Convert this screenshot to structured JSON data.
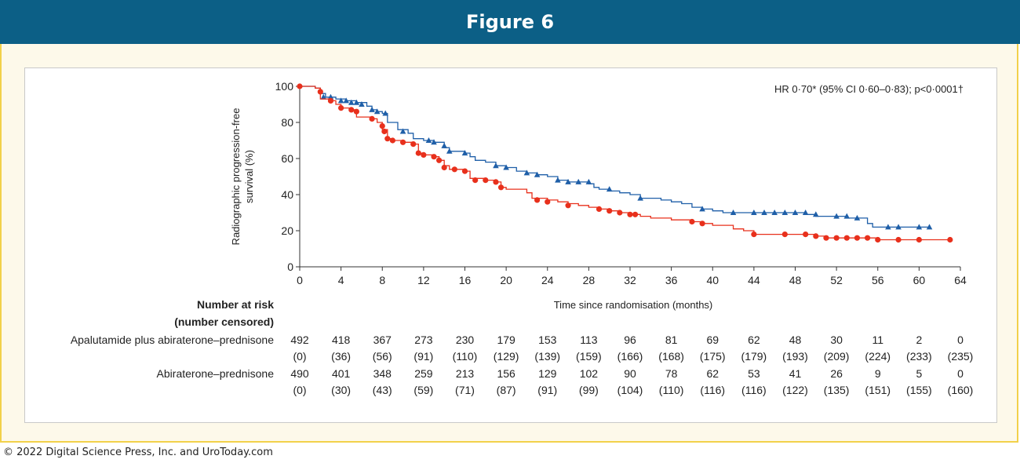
{
  "figure_title": "Figure 6",
  "copyright": "© 2022 Digital Science Press, Inc. and UroToday.com",
  "colors": {
    "banner": "#0c5f86",
    "frame": "#f2d14b",
    "series_blue": "#1f5fa8",
    "series_red": "#e8301c"
  },
  "chart_data": {
    "type": "line",
    "subtype": "kaplan-meier",
    "annotation": "HR 0·70* (95% CI 0·60–0·83); p<0·0001†",
    "xlabel": "Time since randomisation (months)",
    "ylabel_lines": [
      "Radiographic progression-free",
      "survival (%)"
    ],
    "xlim": [
      0,
      64
    ],
    "ylim": [
      0,
      100
    ],
    "x_ticks": [
      0,
      4,
      8,
      12,
      16,
      20,
      24,
      28,
      32,
      36,
      40,
      44,
      48,
      52,
      56,
      60,
      64
    ],
    "y_ticks": [
      0,
      20,
      40,
      60,
      80,
      100
    ],
    "grid": false,
    "series": [
      {
        "color": "#1f5fa8",
        "marker": "triangle",
        "points": [
          [
            0,
            100
          ],
          [
            1.5,
            99
          ],
          [
            2,
            96
          ],
          [
            2.5,
            94
          ],
          [
            3.5,
            93
          ],
          [
            4.5,
            92
          ],
          [
            5.5,
            91
          ],
          [
            6.5,
            89
          ],
          [
            7,
            87
          ],
          [
            7.5,
            86
          ],
          [
            8,
            85
          ],
          [
            8.5,
            80
          ],
          [
            9.5,
            76
          ],
          [
            10.5,
            74
          ],
          [
            11,
            71
          ],
          [
            12,
            70
          ],
          [
            13,
            69
          ],
          [
            14,
            66
          ],
          [
            14.5,
            64
          ],
          [
            16,
            63
          ],
          [
            16.5,
            61
          ],
          [
            17,
            59
          ],
          [
            18,
            58
          ],
          [
            19,
            56
          ],
          [
            20,
            55
          ],
          [
            21,
            53
          ],
          [
            22,
            52
          ],
          [
            23,
            51
          ],
          [
            24,
            50
          ],
          [
            25,
            48
          ],
          [
            26,
            47
          ],
          [
            28,
            46
          ],
          [
            28.5,
            44
          ],
          [
            29,
            43
          ],
          [
            30,
            42
          ],
          [
            31,
            41
          ],
          [
            32,
            40
          ],
          [
            33,
            38
          ],
          [
            35,
            37
          ],
          [
            36,
            36
          ],
          [
            37,
            35
          ],
          [
            38,
            33
          ],
          [
            39,
            32
          ],
          [
            40,
            31
          ],
          [
            41,
            30
          ],
          [
            48,
            30
          ],
          [
            49,
            29
          ],
          [
            50,
            28
          ],
          [
            52,
            28
          ],
          [
            53,
            27
          ],
          [
            54,
            27
          ],
          [
            55,
            24
          ],
          [
            55.5,
            22
          ],
          [
            61,
            22
          ]
        ],
        "censored": [
          [
            2.3,
            94
          ],
          [
            3,
            94
          ],
          [
            4,
            92
          ],
          [
            4.5,
            92
          ],
          [
            5,
            91
          ],
          [
            5.5,
            91
          ],
          [
            6,
            90
          ],
          [
            7,
            87
          ],
          [
            7.5,
            86
          ],
          [
            8.3,
            85
          ],
          [
            10,
            75
          ],
          [
            12.5,
            70
          ],
          [
            13,
            69
          ],
          [
            14,
            67
          ],
          [
            14.5,
            64
          ],
          [
            16,
            63
          ],
          [
            19,
            56
          ],
          [
            20,
            55
          ],
          [
            22,
            52
          ],
          [
            23,
            51
          ],
          [
            25,
            48
          ],
          [
            26,
            47
          ],
          [
            27,
            47
          ],
          [
            28,
            47
          ],
          [
            30,
            43
          ],
          [
            33,
            38
          ],
          [
            39,
            32
          ],
          [
            42,
            30
          ],
          [
            44,
            30
          ],
          [
            45,
            30
          ],
          [
            46,
            30
          ],
          [
            47,
            30
          ],
          [
            48,
            30
          ],
          [
            49,
            30
          ],
          [
            50,
            29
          ],
          [
            52,
            28
          ],
          [
            53,
            28
          ],
          [
            54,
            27
          ],
          [
            57,
            22
          ],
          [
            58,
            22
          ],
          [
            60,
            22
          ],
          [
            61,
            22
          ]
        ]
      },
      {
        "color": "#e8301c",
        "marker": "circle",
        "points": [
          [
            0,
            100
          ],
          [
            1.5,
            99
          ],
          [
            2,
            93
          ],
          [
            3,
            92
          ],
          [
            3.5,
            90
          ],
          [
            4,
            88
          ],
          [
            5,
            87
          ],
          [
            5.5,
            83
          ],
          [
            7,
            82
          ],
          [
            7.5,
            80
          ],
          [
            8,
            76
          ],
          [
            8.5,
            71
          ],
          [
            9,
            70
          ],
          [
            10,
            69
          ],
          [
            11,
            68
          ],
          [
            11.5,
            63
          ],
          [
            12,
            62
          ],
          [
            13,
            61
          ],
          [
            13.5,
            59
          ],
          [
            14,
            56
          ],
          [
            14.5,
            54
          ],
          [
            16,
            53
          ],
          [
            16.5,
            49
          ],
          [
            18,
            48
          ],
          [
            19,
            47
          ],
          [
            19.5,
            44
          ],
          [
            20,
            43
          ],
          [
            22,
            41
          ],
          [
            22.5,
            38
          ],
          [
            24,
            37
          ],
          [
            25,
            36
          ],
          [
            26,
            35
          ],
          [
            27,
            34
          ],
          [
            28,
            33
          ],
          [
            29,
            32
          ],
          [
            30,
            31
          ],
          [
            31,
            30
          ],
          [
            32,
            29
          ],
          [
            33,
            28
          ],
          [
            34,
            27
          ],
          [
            36,
            26
          ],
          [
            38,
            25
          ],
          [
            39,
            24
          ],
          [
            40,
            23
          ],
          [
            42,
            21
          ],
          [
            43,
            20
          ],
          [
            44,
            18
          ],
          [
            45,
            18
          ],
          [
            50,
            17
          ],
          [
            51,
            16
          ],
          [
            55,
            16
          ],
          [
            56,
            15
          ],
          [
            63,
            15
          ]
        ],
        "censored": [
          [
            0,
            100
          ],
          [
            2,
            97
          ],
          [
            3,
            92
          ],
          [
            4,
            88
          ],
          [
            5,
            87
          ],
          [
            5.5,
            86
          ],
          [
            7,
            82
          ],
          [
            8,
            78
          ],
          [
            8.2,
            75
          ],
          [
            8.5,
            71
          ],
          [
            9,
            70
          ],
          [
            10,
            69
          ],
          [
            11,
            68
          ],
          [
            11.5,
            63
          ],
          [
            12,
            62
          ],
          [
            13,
            61
          ],
          [
            13.5,
            59
          ],
          [
            14,
            55
          ],
          [
            15,
            54
          ],
          [
            16,
            53
          ],
          [
            17,
            48
          ],
          [
            18,
            48
          ],
          [
            19,
            47
          ],
          [
            19.5,
            44
          ],
          [
            23,
            37
          ],
          [
            24,
            36
          ],
          [
            26,
            34
          ],
          [
            29,
            32
          ],
          [
            30,
            31
          ],
          [
            31,
            30
          ],
          [
            32,
            29
          ],
          [
            32.5,
            29
          ],
          [
            38,
            25
          ],
          [
            39,
            24
          ],
          [
            44,
            18
          ],
          [
            47,
            18
          ],
          [
            49,
            18
          ],
          [
            50,
            17
          ],
          [
            51,
            16
          ],
          [
            52,
            16
          ],
          [
            53,
            16
          ],
          [
            54,
            16
          ],
          [
            55,
            16
          ],
          [
            56,
            15
          ],
          [
            58,
            15
          ],
          [
            60,
            15
          ],
          [
            63,
            15
          ]
        ]
      }
    ],
    "risk_table": {
      "header_line1": "Number at risk",
      "header_line2": "(number censored)",
      "rows": [
        {
          "label": "Apalutamide plus abiraterone–prednisone",
          "at_risk": [
            "492",
            "418",
            "367",
            "273",
            "230",
            "179",
            "153",
            "113",
            "96",
            "81",
            "69",
            "62",
            "48",
            "30",
            "11",
            "2",
            "0"
          ],
          "censored": [
            "(0)",
            "(36)",
            "(56)",
            "(91)",
            "(110)",
            "(129)",
            "(139)",
            "(159)",
            "(166)",
            "(168)",
            "(175)",
            "(179)",
            "(193)",
            "(209)",
            "(224)",
            "(233)",
            "(235)"
          ]
        },
        {
          "label": "Abiraterone–prednisone",
          "at_risk": [
            "490",
            "401",
            "348",
            "259",
            "213",
            "156",
            "129",
            "102",
            "90",
            "78",
            "62",
            "53",
            "41",
            "26",
            "9",
            "5",
            "0"
          ],
          "censored": [
            "(0)",
            "(30)",
            "(43)",
            "(59)",
            "(71)",
            "(87)",
            "(91)",
            "(99)",
            "(104)",
            "(110)",
            "(116)",
            "(116)",
            "(122)",
            "(135)",
            "(151)",
            "(155)",
            "(160)"
          ]
        }
      ]
    }
  }
}
